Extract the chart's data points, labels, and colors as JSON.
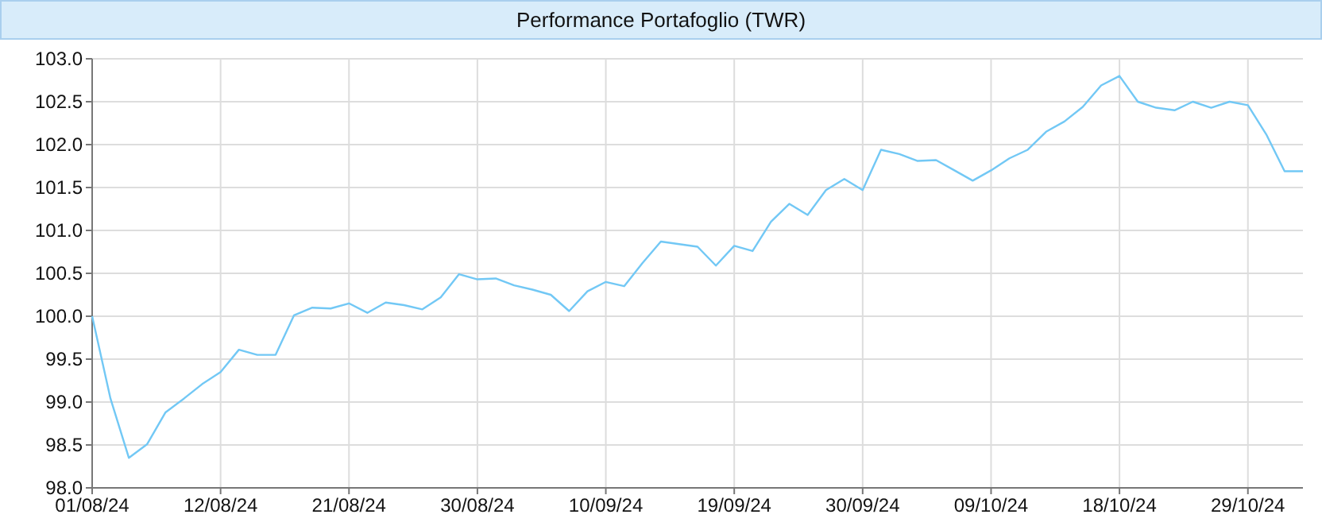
{
  "chart_data": {
    "type": "line",
    "title": "Performance Portafoglio (TWR)",
    "categories": [
      "01/08/24",
      null,
      null,
      null,
      null,
      null,
      null,
      "12/08/24",
      null,
      null,
      null,
      null,
      null,
      null,
      "21/08/24",
      null,
      null,
      null,
      null,
      null,
      null,
      "30/08/24",
      null,
      null,
      null,
      null,
      null,
      null,
      "10/09/24",
      null,
      null,
      null,
      null,
      null,
      null,
      "19/09/24",
      null,
      null,
      null,
      null,
      null,
      null,
      "30/09/24",
      null,
      null,
      null,
      null,
      null,
      null,
      "09/10/24",
      null,
      null,
      null,
      null,
      null,
      null,
      "18/10/24",
      null,
      null,
      null,
      null,
      null,
      null,
      "29/10/24",
      null,
      null,
      null
    ],
    "series": [
      {
        "color": "#72c8f5",
        "values": [
          100.0,
          99.04,
          98.35,
          98.51,
          98.88,
          99.04,
          99.21,
          99.35,
          99.61,
          99.55,
          99.55,
          100.01,
          100.1,
          100.09,
          100.15,
          100.04,
          100.16,
          100.13,
          100.08,
          100.22,
          100.49,
          100.43,
          100.44,
          100.36,
          100.31,
          100.25,
          100.06,
          100.29,
          100.4,
          100.35,
          100.62,
          100.87,
          100.84,
          100.81,
          100.59,
          100.82,
          100.76,
          101.1,
          101.31,
          101.18,
          101.47,
          101.6,
          101.47,
          101.94,
          101.89,
          101.81,
          101.82,
          101.7,
          101.58,
          101.7,
          101.84,
          101.94,
          102.15,
          102.27,
          102.44,
          102.69,
          102.8,
          102.5,
          102.43,
          102.4,
          102.5,
          102.43,
          102.5,
          102.46,
          102.12,
          101.69,
          101.69
        ]
      }
    ],
    "ylim": [
      98,
      103
    ],
    "yticks": [
      {
        "value": 98,
        "label": "98.0"
      },
      {
        "value": 98.5,
        "label": "98.5"
      },
      {
        "value": 99,
        "label": "99.0"
      },
      {
        "value": 99.5,
        "label": "99.5"
      },
      {
        "value": 100,
        "label": "100.0"
      },
      {
        "value": 100.5,
        "label": "100.5"
      },
      {
        "value": 101,
        "label": "101.0"
      },
      {
        "value": 101.5,
        "label": "101.5"
      },
      {
        "value": 102,
        "label": "102.0"
      },
      {
        "value": 102.5,
        "label": "102.5"
      },
      {
        "value": 103,
        "label": "103.0"
      }
    ],
    "grid": true,
    "marker": "none",
    "line_style": "solid"
  }
}
